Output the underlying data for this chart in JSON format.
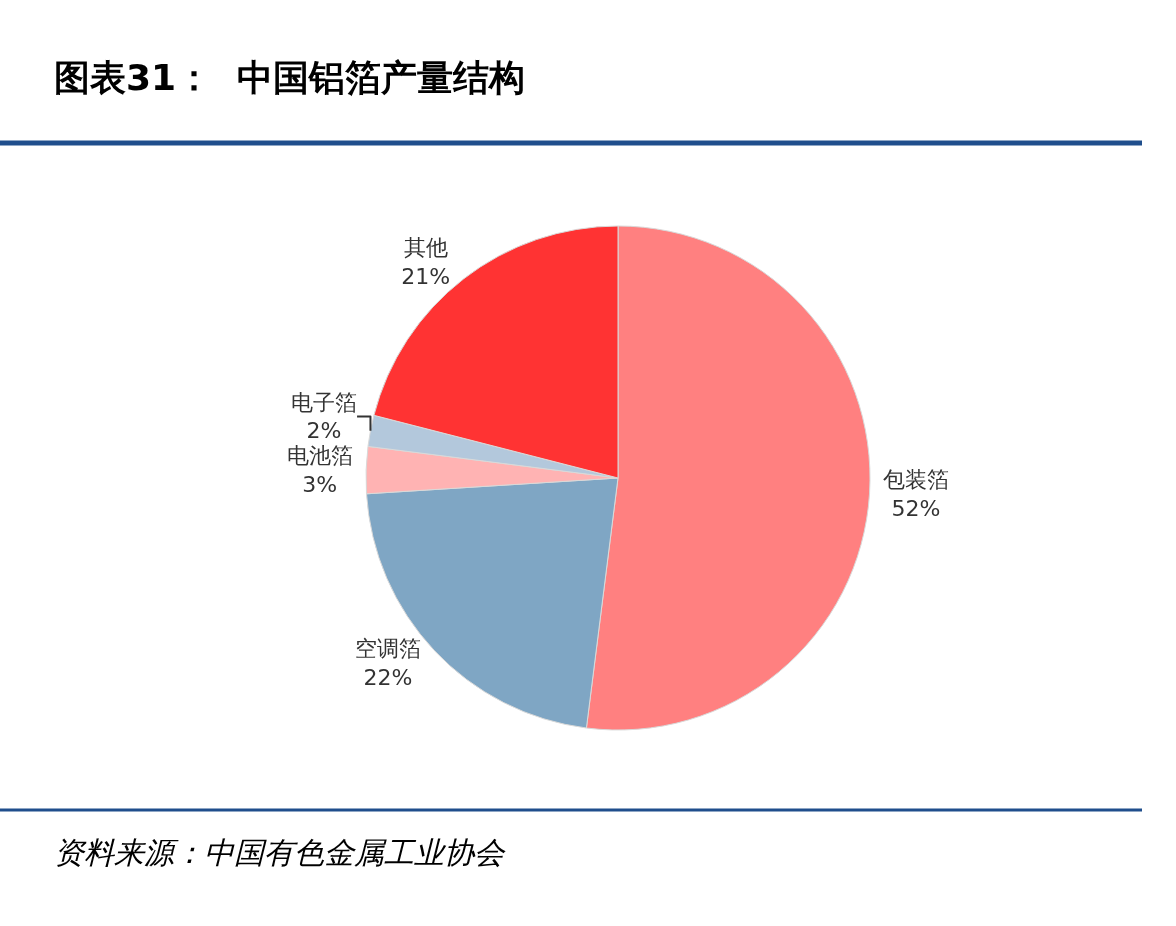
{
  "chart_data": {
    "type": "pie",
    "title": "图表31：  中国铝箔产量结构",
    "categories": [
      "包装箔",
      "空调箔",
      "电池箔",
      "电子箔",
      "其他"
    ],
    "values": [
      52,
      22,
      3,
      2,
      21
    ],
    "value_labels": [
      "52%",
      "22%",
      "3%",
      "2%",
      "21%"
    ],
    "colors": [
      "#ff8080",
      "#7fa6c4",
      "#ffb3b3",
      "#b3c8dc",
      "#ff3333"
    ],
    "legend": false,
    "annotations": [
      "资料来源：中国有色金属工业协会"
    ]
  }
}
